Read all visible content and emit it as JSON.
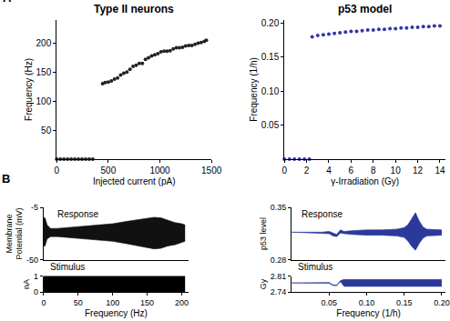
{
  "chart_data": [
    {
      "type": "scatter",
      "title": "Type II neurons",
      "xlabel": "Injected current (pA)",
      "ylabel": "Frequency (Hz)",
      "annotations": [
        "A"
      ],
      "color": "#222222",
      "marker": "circle",
      "x": [
        0,
        35,
        70,
        105,
        140,
        175,
        210,
        245,
        280,
        315,
        350,
        445,
        470,
        500,
        530,
        560,
        590,
        620,
        650,
        680,
        710,
        740,
        770,
        800,
        830,
        860,
        890,
        920,
        950,
        980,
        1010,
        1040,
        1070,
        1100,
        1130,
        1160,
        1190,
        1220,
        1250,
        1280,
        1310,
        1340,
        1370,
        1400,
        1430,
        1450
      ],
      "values": [
        0,
        0,
        0,
        0,
        0,
        0,
        0,
        0,
        0,
        0,
        0,
        130,
        132,
        133,
        135,
        138,
        140,
        145,
        148,
        150,
        155,
        160,
        162,
        165,
        165,
        172,
        175,
        178,
        180,
        182,
        185,
        186,
        186,
        187,
        190,
        192,
        192,
        193,
        195,
        196,
        196,
        198,
        200,
        201,
        203,
        205
      ],
      "xlim": [
        0,
        1500
      ],
      "xticks": [
        0,
        500,
        1000,
        1500
      ],
      "ylim": [
        0,
        240
      ],
      "yticks": [
        50,
        100,
        150,
        200
      ],
      "grid": false
    },
    {
      "type": "scatter",
      "title": "p53 model",
      "xlabel": "γ-Irradiation (Gy)",
      "ylabel": "Frequency (1/h)",
      "color": "#3535a8",
      "marker": "circle",
      "x": [
        0,
        0.45,
        0.9,
        1.35,
        1.8,
        2.25,
        2.5,
        3,
        3.5,
        4,
        4.5,
        5,
        5.5,
        6,
        6.5,
        7,
        7.5,
        8,
        8.5,
        9,
        9.5,
        10,
        10.5,
        11,
        11.5,
        12,
        12.5,
        13,
        13.5,
        14
      ],
      "values": [
        0,
        0,
        0,
        0,
        0,
        0,
        0.18,
        0.182,
        0.183,
        0.184,
        0.185,
        0.186,
        0.187,
        0.188,
        0.188,
        0.189,
        0.19,
        0.19,
        0.191,
        0.191,
        0.192,
        0.192,
        0.193,
        0.193,
        0.194,
        0.194,
        0.195,
        0.195,
        0.196,
        0.196
      ],
      "xlim": [
        0,
        14.5
      ],
      "xticks": [
        0,
        2,
        4,
        6,
        8,
        10,
        12,
        14
      ],
      "ylim": [
        0,
        0.205
      ],
      "yticks": [
        {
          "value": 0.05,
          "label": "0.05"
        },
        {
          "value": 0.1,
          "label": "0.10"
        },
        {
          "value": 0.15,
          "label": "0.15"
        },
        {
          "value": 0.2,
          "label": "0.20"
        }
      ],
      "grid": false
    },
    {
      "type": "envelope",
      "ylabel": "Membrane Potential (mV)",
      "annotations": [
        "B",
        "Response"
      ],
      "color": "#111111",
      "x": [
        0,
        2,
        5,
        10,
        20,
        40,
        60,
        80,
        100,
        120,
        140,
        160,
        170,
        180,
        190,
        200,
        205
      ],
      "upper": [
        -14,
        -14,
        -20,
        -23,
        -23,
        -22,
        -21,
        -20,
        -19,
        -17,
        -15,
        -13.5,
        -14,
        -16,
        -18,
        -19,
        -20
      ],
      "lower": [
        -38,
        -38,
        -32,
        -30,
        -30,
        -31,
        -32,
        -33,
        -34,
        -36,
        -38,
        -40.5,
        -40,
        -38,
        -37,
        -35,
        -34
      ],
      "xlim": [
        0,
        210
      ],
      "ylim": [
        -50,
        -5
      ],
      "yticks": [
        {
          "value": -50,
          "label": "-50"
        },
        {
          "value": -5,
          "label": "-5"
        }
      ],
      "tick_labels": "y",
      "grid": false
    },
    {
      "type": "envelope",
      "xlabel": "Frequency (Hz)",
      "ylabel": "nA",
      "annotations": [
        "Stimulus"
      ],
      "color": "#000000",
      "x": [
        0,
        205
      ],
      "upper": [
        1,
        1
      ],
      "lower": [
        0,
        0
      ],
      "xlim": [
        0,
        210
      ],
      "xticks": [
        0,
        50,
        100,
        150,
        200
      ],
      "ylim": [
        0,
        1
      ],
      "yticks": [
        0,
        1
      ],
      "grid": false
    },
    {
      "type": "envelope",
      "ylabel": "p53 level",
      "annotations": [
        "Response"
      ],
      "color": "#2b3a9a",
      "x": [
        0,
        0.04,
        0.05,
        0.055,
        0.06,
        0.065,
        0.07,
        0.08,
        0.1,
        0.12,
        0.14,
        0.15,
        0.155,
        0.16,
        0.165,
        0.17,
        0.175,
        0.18,
        0.2
      ],
      "upper": [
        0.317,
        0.317,
        0.318,
        0.316,
        0.314,
        0.32,
        0.318,
        0.319,
        0.32,
        0.32,
        0.321,
        0.323,
        0.327,
        0.335,
        0.343,
        0.332,
        0.324,
        0.321,
        0.32
      ],
      "lower": [
        0.317,
        0.316,
        0.315,
        0.312,
        0.311,
        0.316,
        0.315,
        0.314,
        0.313,
        0.313,
        0.312,
        0.31,
        0.305,
        0.298,
        0.293,
        0.302,
        0.309,
        0.312,
        0.313
      ],
      "xlim": [
        0,
        0.205
      ],
      "ylim": [
        0.28,
        0.35
      ],
      "yticks": [
        0.28,
        0.35
      ],
      "tick_labels": "y",
      "grid": false
    },
    {
      "type": "envelope",
      "xlabel": "Frequency (1/h)",
      "ylabel": "Gy",
      "annotations": [
        "Stimulus"
      ],
      "color": "#2b3a9a",
      "x": [
        0,
        0.04,
        0.05,
        0.055,
        0.06,
        0.065,
        0.07,
        0.2
      ],
      "upper": [
        2.78,
        2.78,
        2.782,
        2.772,
        2.77,
        2.79,
        2.795,
        2.795
      ],
      "lower": [
        2.78,
        2.779,
        2.779,
        2.769,
        2.768,
        2.786,
        2.765,
        2.765
      ],
      "xlim": [
        0,
        0.205
      ],
      "xticks": [
        {
          "value": 0.05,
          "label": "0.05"
        },
        {
          "value": 0.1,
          "label": "0.10"
        },
        {
          "value": 0.15,
          "label": "0.15"
        },
        {
          "value": 0.2,
          "label": "0.20"
        }
      ],
      "ylim": [
        2.74,
        2.81
      ],
      "yticks": [
        2.74,
        2.81
      ],
      "grid": false
    }
  ]
}
